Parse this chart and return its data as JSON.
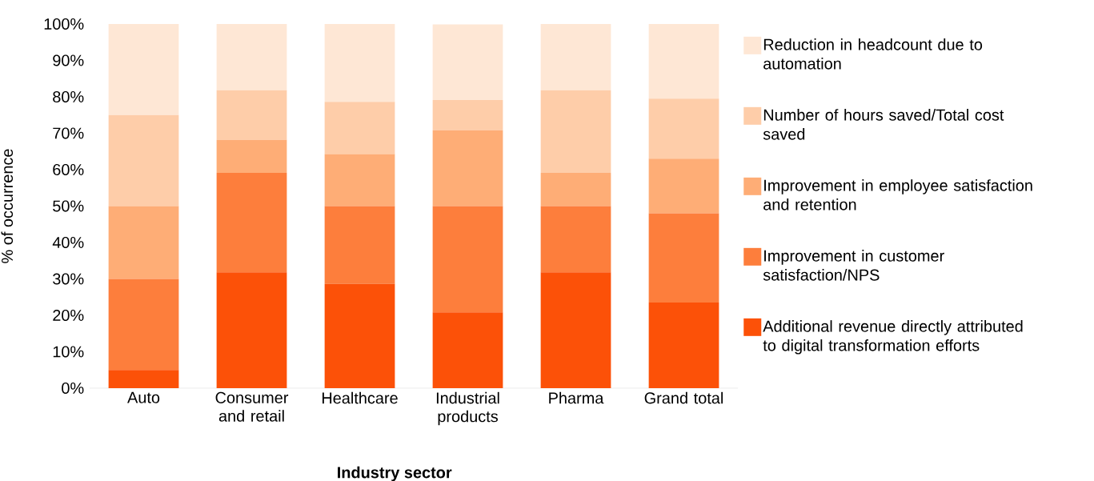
{
  "chart_data": {
    "type": "bar",
    "stacked": true,
    "xlabel": "Industry sector",
    "ylabel": "% of occurrence",
    "categories": [
      "Auto",
      "Consumer and retail",
      "Healthcare",
      "Industrial products",
      "Pharma",
      "Grand total"
    ],
    "series": [
      {
        "name": "Additional revenue directly attributed to digital transformation efforts",
        "color": "#fc5108",
        "values": [
          5,
          31.8,
          28.6,
          20.8,
          31.8,
          23.5
        ]
      },
      {
        "name": "Improvement in customer satisfaction/NPS",
        "color": "#fd7e3c",
        "values": [
          25,
          27.3,
          21.4,
          29.2,
          18.2,
          24.5
        ]
      },
      {
        "name": "Improvement in employee satisfaction and retention",
        "color": "#fead76",
        "values": [
          20,
          9.1,
          14.3,
          20.8,
          9.1,
          15
        ]
      },
      {
        "name": "Number of hours saved/Total cost saved",
        "color": "#fecda9",
        "values": [
          25,
          13.6,
          14.3,
          8.3,
          22.7,
          16.5
        ]
      },
      {
        "name": "Reduction in headcount due to automation",
        "color": "#fee7d5",
        "values": [
          25,
          18.2,
          21.4,
          20.8,
          18.2,
          20.5
        ]
      }
    ],
    "ylim": [
      0,
      100
    ],
    "yticks": [
      {
        "value": 0,
        "label": "0%"
      },
      {
        "value": 10,
        "label": "10%"
      },
      {
        "value": 20,
        "label": "20%"
      },
      {
        "value": 30,
        "label": "30%"
      },
      {
        "value": 40,
        "label": "40%"
      },
      {
        "value": 50,
        "label": "50%"
      },
      {
        "value": 60,
        "label": "60%"
      },
      {
        "value": 70,
        "label": "70%"
      },
      {
        "value": 80,
        "label": "80%"
      },
      {
        "value": 90,
        "label": "90%"
      },
      {
        "value": 100,
        "label": "100%"
      }
    ],
    "legend": "right"
  }
}
